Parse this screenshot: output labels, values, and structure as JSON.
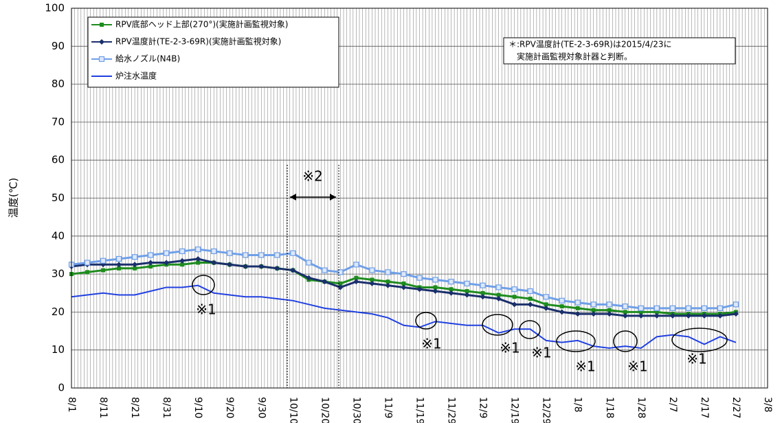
{
  "chart_data": {
    "type": "line",
    "y_label": "温度(℃)",
    "categories": [
      "8/1",
      null,
      "8/11",
      null,
      "8/21",
      null,
      "8/31",
      null,
      "9/10",
      null,
      "9/20",
      null,
      "9/30",
      null,
      "10/10",
      null,
      "10/20",
      null,
      "10/30",
      null,
      "11/9",
      null,
      "11/19",
      null,
      "11/29",
      null,
      "12/9",
      null,
      "12/19",
      null,
      "12/29",
      null,
      "1/8",
      null,
      "1/18",
      null,
      "1/28",
      null,
      "2/7",
      null,
      "2/17",
      null,
      "2/27",
      null,
      "3/8"
    ],
    "ylim": [
      0,
      100
    ],
    "yticks": [
      0,
      10,
      20,
      30,
      40,
      50,
      60,
      70,
      80,
      90,
      100
    ],
    "grid": true,
    "series": [
      {
        "name": "RPV底部ヘッド上部(270°)(実施計画監視対象)",
        "color": "#1e8c1e",
        "marker": "square",
        "values": [
          30,
          30.5,
          31,
          31.5,
          31.5,
          32,
          32.5,
          32.5,
          33,
          33,
          32.5,
          32,
          32,
          31.5,
          31,
          28.5,
          28,
          27.5,
          29,
          28.5,
          28,
          27.5,
          26.5,
          26.5,
          26,
          25.5,
          25,
          24.5,
          24,
          23.5,
          22,
          21.5,
          21,
          20.5,
          20.5,
          20,
          20,
          20,
          19.5,
          19.5,
          19.5,
          19.5,
          20,
          null,
          null
        ]
      },
      {
        "name": "RPV温度計(TE-2-3-69R)(実施計画監視対象)",
        "color": "#1a2f6b",
        "marker": "diamond",
        "values": [
          32,
          32.5,
          32.5,
          32.5,
          32.5,
          33,
          33,
          33.5,
          34,
          33,
          32.5,
          32,
          32,
          31.5,
          31,
          29,
          28,
          26.5,
          28,
          27.5,
          27,
          26.5,
          26,
          25.5,
          25,
          24.5,
          24,
          23.5,
          22,
          22,
          21,
          20,
          19.5,
          19.5,
          19.5,
          19,
          19,
          19,
          19,
          19,
          19,
          19,
          19.5,
          null,
          null
        ]
      },
      {
        "name": "給水ノズル(N4B)",
        "color": "#6f9fe8",
        "marker": "open-square",
        "values": [
          32.5,
          33,
          33.5,
          34,
          34.5,
          35,
          35.5,
          36,
          36.5,
          36,
          35.5,
          35,
          35,
          35,
          35.5,
          33,
          31,
          30.5,
          32.5,
          31,
          30.5,
          30,
          29,
          28.5,
          28,
          27.5,
          27,
          26.5,
          26,
          25.5,
          24,
          23,
          22.5,
          22,
          22,
          21.5,
          21,
          21,
          21,
          21,
          21,
          21,
          22,
          null,
          null
        ]
      },
      {
        "name": "炉注水温度",
        "color": "#1f3fe0",
        "marker": "none",
        "values": [
          24,
          24.5,
          25,
          24.5,
          24.5,
          25.5,
          26.5,
          26.5,
          27,
          25,
          24.5,
          24,
          24,
          23.5,
          23,
          22,
          21,
          20.5,
          20,
          19.5,
          18.5,
          16.5,
          16,
          17.5,
          17,
          16.5,
          16.5,
          14.5,
          15.5,
          15.5,
          12.5,
          12,
          12.5,
          11,
          10.5,
          11,
          10.5,
          13.5,
          14,
          13.5,
          11.5,
          13.5,
          12,
          null,
          null
        ]
      }
    ],
    "annotations": [
      "※2",
      "※1",
      "※1",
      "※1",
      "※1",
      "※1",
      "※1",
      "※1"
    ],
    "note": [
      "＊:RPV温度計(TE-2-3-69R)は2015/4/23に",
      "実施計画監視対象計器と判断。"
    ]
  }
}
